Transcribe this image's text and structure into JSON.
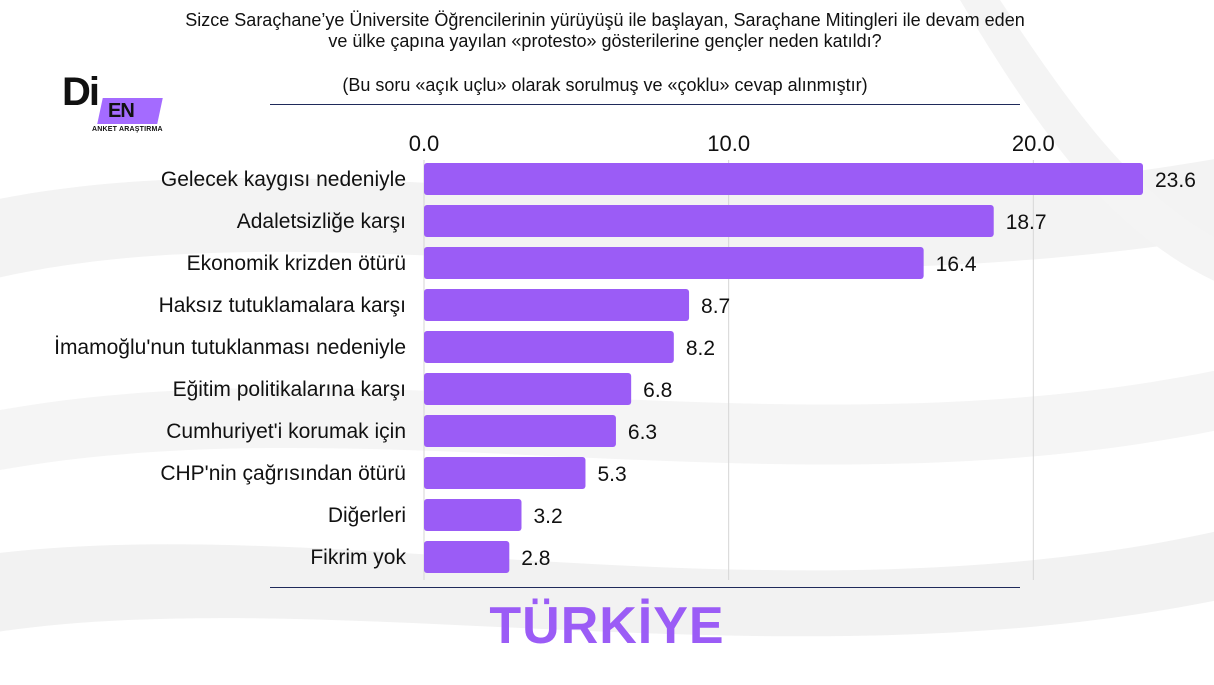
{
  "header": {
    "question": "Sizce Saraçhane’ye Üniversite Öğrencilerinin yürüyüşü ile başlayan, Saraçhane Mitingleri ile devam eden ve ülke çapına yayılan «protesto» gösterilerine gençler neden katıldı?",
    "note": "(Bu soru «açık uçlu» olarak sorulmuş ve «çoklu» cevap alınmıştır)"
  },
  "logo": {
    "mark_left": "Di",
    "mark_right": "EN",
    "subtitle": "ANKET ARAŞTIRMA"
  },
  "chart_data": {
    "type": "bar",
    "orientation": "horizontal",
    "categories": [
      "Gelecek kaygısı nedeniyle",
      "Adaletsizliğe karşı",
      "Ekonomik krizden ötürü",
      "Haksız tutuklamalara karşı",
      "İmamoğlu'nun tutuklanması nedeniyle",
      "Eğitim politikalarına karşı",
      "Cumhuriyet'i korumak için",
      "CHP'nin çağrısından ötürü",
      "Diğerleri",
      "Fikrim yok"
    ],
    "values": [
      23.6,
      18.7,
      16.4,
      8.7,
      8.2,
      6.8,
      6.3,
      5.3,
      3.2,
      2.8
    ],
    "value_labels": [
      "23.6",
      "18.7",
      "16.4",
      "8.7",
      "8.2",
      "6.8",
      "6.3",
      "5.3",
      "3.2",
      "2.8"
    ],
    "xlim": [
      0,
      23.6
    ],
    "xticks": [
      0,
      10,
      20
    ],
    "xtick_labels": [
      "0.0",
      "10.0",
      "20.0"
    ],
    "x_axis_position": "top",
    "grid": true,
    "legend": "none",
    "bar_color": "#9b5cf6"
  },
  "footer": {
    "region": "TÜRKİYE"
  }
}
